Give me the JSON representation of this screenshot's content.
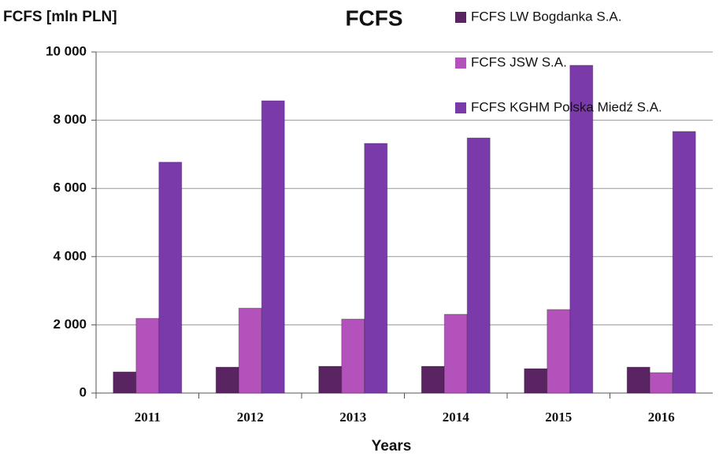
{
  "chart_data": {
    "type": "bar",
    "title": "FCFS",
    "y_axis_label": "FCFS [mln PLN]",
    "x_axis_label": "Years",
    "categories": [
      "2011",
      "2012",
      "2013",
      "2014",
      "2015",
      "2016"
    ],
    "series": [
      {
        "name": "FCFS LW Bogdanka S.A.",
        "color": "#5a2362",
        "values": [
          620,
          760,
          785,
          785,
          715,
          760
        ]
      },
      {
        "name": "FCFS JSW S.A.",
        "color": "#b352bb",
        "values": [
          2190,
          2490,
          2170,
          2310,
          2450,
          600
        ]
      },
      {
        "name": "FCFS KGHM Polska Miedź S.A.",
        "color": "#7b3aa9",
        "values": [
          6770,
          8570,
          7320,
          7480,
          9610,
          7670
        ]
      }
    ],
    "ylim": [
      0,
      10000
    ],
    "yticks": [
      0,
      {
        "value": 2000,
        "label": "2 000"
      },
      {
        "value": 4000,
        "label": "4 000"
      },
      {
        "value": 6000,
        "label": "6 000"
      },
      {
        "value": 8000,
        "label": "8 000"
      },
      {
        "value": 10000,
        "label": "10 000"
      }
    ],
    "grid": true,
    "legend": "top-right"
  }
}
